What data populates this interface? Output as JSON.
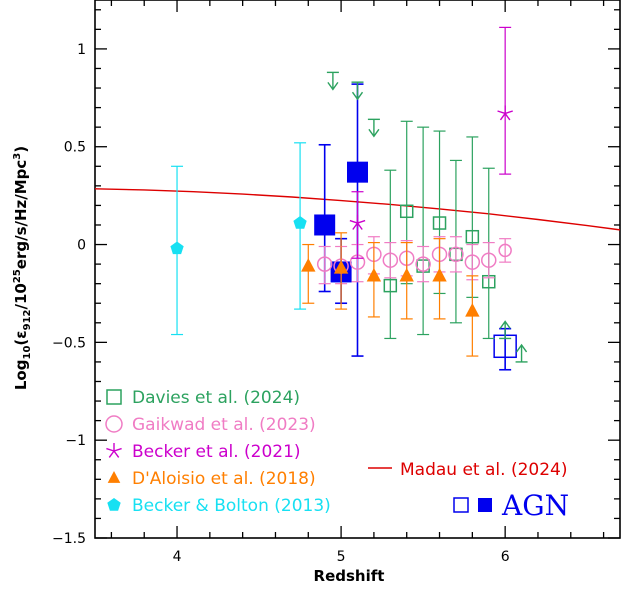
{
  "chart_data": {
    "type": "scatter",
    "xlabel": "Redshift",
    "ylabel_parts": {
      "pre": "Log",
      "sub10": "10",
      "open": "(ε",
      "sub912": "912",
      "mid": "/10",
      "sup25": "25",
      "post": "erg/s/Hz/Mpc",
      "sup3": "3",
      "close": ")"
    },
    "xlim": [
      3.5,
      6.7
    ],
    "ylim": [
      -1.5,
      1.25
    ],
    "xticks": [
      4,
      5,
      6
    ],
    "yticks": [
      -1.5,
      -1,
      -0.5,
      0,
      0.5,
      1
    ],
    "ytick_labels": [
      "−1.5",
      "−1",
      "−0.5",
      "0",
      "0.5",
      "1"
    ],
    "series": [
      {
        "name": "Davies et al. (2024)",
        "color": "#2ca25f",
        "marker": "open-square",
        "points": [
          {
            "x": 5.3,
            "y": -0.21,
            "lo": -0.48,
            "hi": 0.38
          },
          {
            "x": 5.4,
            "y": 0.17,
            "lo": -0.2,
            "hi": 0.63
          },
          {
            "x": 5.5,
            "y": -0.11,
            "lo": -0.46,
            "hi": 0.6
          },
          {
            "x": 5.6,
            "y": 0.11,
            "lo": -0.25,
            "hi": 0.58
          },
          {
            "x": 5.7,
            "y": -0.05,
            "lo": -0.4,
            "hi": 0.43
          },
          {
            "x": 5.8,
            "y": 0.04,
            "lo": -0.27,
            "hi": 0.55
          },
          {
            "x": 5.9,
            "y": -0.19,
            "lo": -0.48,
            "hi": 0.39
          }
        ],
        "limits": [
          {
            "x": 4.95,
            "y": 0.88,
            "dir": "upper"
          },
          {
            "x": 5.1,
            "y": 0.83,
            "dir": "upper"
          },
          {
            "x": 5.2,
            "y": 0.64,
            "dir": "upper"
          },
          {
            "x": 6.0,
            "y": -0.48,
            "dir": "lower"
          },
          {
            "x": 6.1,
            "y": -0.6,
            "dir": "lower"
          }
        ]
      },
      {
        "name": "Gaikwad et al. (2023)",
        "color": "#f07cc4",
        "marker": "open-circle",
        "points": [
          {
            "x": 4.9,
            "y": -0.1,
            "lo": -0.2,
            "hi": -0.01
          },
          {
            "x": 5.0,
            "y": -0.11,
            "lo": -0.2,
            "hi": -0.01
          },
          {
            "x": 5.1,
            "y": -0.09,
            "lo": -0.19,
            "hi": 0.0
          },
          {
            "x": 5.2,
            "y": -0.05,
            "lo": -0.15,
            "hi": 0.04
          },
          {
            "x": 5.3,
            "y": -0.08,
            "lo": -0.17,
            "hi": 0.01
          },
          {
            "x": 5.4,
            "y": -0.07,
            "lo": -0.16,
            "hi": 0.02
          },
          {
            "x": 5.5,
            "y": -0.1,
            "lo": -0.19,
            "hi": -0.01
          },
          {
            "x": 5.6,
            "y": -0.05,
            "lo": -0.14,
            "hi": 0.04
          },
          {
            "x": 5.7,
            "y": -0.05,
            "lo": -0.14,
            "hi": 0.04
          },
          {
            "x": 5.8,
            "y": -0.09,
            "lo": -0.18,
            "hi": 0.0
          },
          {
            "x": 5.9,
            "y": -0.08,
            "lo": -0.17,
            "hi": 0.01
          },
          {
            "x": 6.0,
            "y": -0.03,
            "lo": -0.09,
            "hi": 0.03
          }
        ]
      },
      {
        "name": "Becker et al. (2021)",
        "color": "#cc00cc",
        "marker": "star",
        "points": [
          {
            "x": 5.1,
            "y": 0.11,
            "lo": -0.07,
            "hi": 0.27
          },
          {
            "x": 6.0,
            "y": 0.67,
            "lo": 0.36,
            "hi": 1.11
          }
        ]
      },
      {
        "name": "D'Aloisio et al. (2018)",
        "color": "#ff7f00",
        "marker": "filled-triangle",
        "points": [
          {
            "x": 4.8,
            "y": -0.11,
            "lo": -0.3,
            "hi": 0.0
          },
          {
            "x": 5.0,
            "y": -0.12,
            "lo": -0.33,
            "hi": 0.06
          },
          {
            "x": 5.2,
            "y": -0.16,
            "lo": -0.37,
            "hi": 0.01
          },
          {
            "x": 5.4,
            "y": -0.16,
            "lo": -0.38,
            "hi": 0.01
          },
          {
            "x": 5.6,
            "y": -0.16,
            "lo": -0.38,
            "hi": 0.03
          },
          {
            "x": 5.8,
            "y": -0.34,
            "lo": -0.57,
            "hi": -0.16
          }
        ]
      },
      {
        "name": "Becker & Bolton (2013)",
        "color": "#17e0f2",
        "marker": "filled-pentagon",
        "points": [
          {
            "x": 4.0,
            "y": -0.02,
            "lo": -0.46,
            "hi": 0.4
          },
          {
            "x": 4.75,
            "y": 0.11,
            "lo": -0.33,
            "hi": 0.52
          }
        ]
      },
      {
        "name": "AGN",
        "color": "#0000ee",
        "marker": "square",
        "points": [
          {
            "x": 4.9,
            "y": 0.1,
            "lo": -0.24,
            "hi": 0.51,
            "filled": true
          },
          {
            "x": 5.0,
            "y": -0.14,
            "lo": -0.3,
            "hi": 0.03,
            "filled": true
          },
          {
            "x": 5.1,
            "y": 0.37,
            "lo": -0.57,
            "hi": 0.82,
            "filled": true
          },
          {
            "x": 6.0,
            "y": -0.52,
            "lo": -0.64,
            "hi": -0.43,
            "filled": false
          }
        ]
      }
    ],
    "model": {
      "name": "Madau et al. (2024)",
      "color": "#dd0000",
      "x": [
        3.5,
        3.8,
        4.1,
        4.4,
        4.7,
        5.0,
        5.3,
        5.6,
        5.9,
        6.2,
        6.5,
        6.7
      ],
      "y": [
        0.285,
        0.279,
        0.27,
        0.258,
        0.243,
        0.225,
        0.205,
        0.182,
        0.157,
        0.128,
        0.097,
        0.075
      ]
    },
    "legend": {
      "entries": [
        {
          "label": "Davies et al. (2024)",
          "color": "#2ca25f",
          "marker": "open-square"
        },
        {
          "label": "Gaikwad et al. (2023)",
          "color": "#f07cc4",
          "marker": "open-circle"
        },
        {
          "label": "Becker et al. (2021)",
          "color": "#cc00cc",
          "marker": "star"
        },
        {
          "label": "D'Aloisio et al. (2018)",
          "color": "#ff7f00",
          "marker": "filled-triangle"
        },
        {
          "label": "Becker & Bolton (2013)",
          "color": "#17e0f2",
          "marker": "filled-pentagon"
        }
      ],
      "model_label": "Madau et al. (2024)",
      "agn_label": "AGN",
      "agn_color": "#0000ee"
    }
  }
}
